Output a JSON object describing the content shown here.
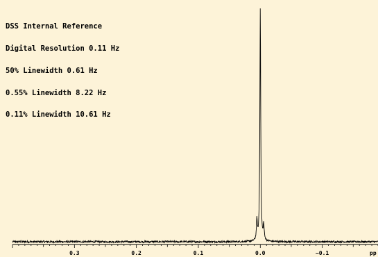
{
  "annotations": [
    "DSS Internal Reference",
    "Digital Resolution 0.11 Hz",
    "50% Linewidth 0.61 Hz",
    "0.55% Linewidth 8.22 Hz",
    "0.11% Linewidth 10.61 Hz"
  ],
  "chart_data": {
    "type": "line",
    "title": "",
    "xlabel": "pp",
    "ylabel": "",
    "x_reversed": true,
    "xlim": [
      0.4,
      -0.19
    ],
    "ylim": [
      0,
      1
    ],
    "x_ticks": [
      0.3,
      0.2,
      0.1,
      0.0,
      -0.1
    ],
    "x_tick_labels": [
      "0.3",
      "0.2",
      "0.1",
      "0.0",
      "−0.1"
    ],
    "grid": false,
    "legend": "none",
    "series": [
      {
        "peaks": [
          {
            "center_ppm": 0.0,
            "height": 1.0,
            "hwhm_ppm": 0.0008
          },
          {
            "center_ppm": 0.0055,
            "height": 0.085,
            "hwhm_ppm": 0.0009
          },
          {
            "center_ppm": -0.0055,
            "height": 0.065,
            "hwhm_ppm": 0.0009
          }
        ],
        "baseline": 0.0,
        "noise_amplitude": 0.004
      }
    ]
  }
}
